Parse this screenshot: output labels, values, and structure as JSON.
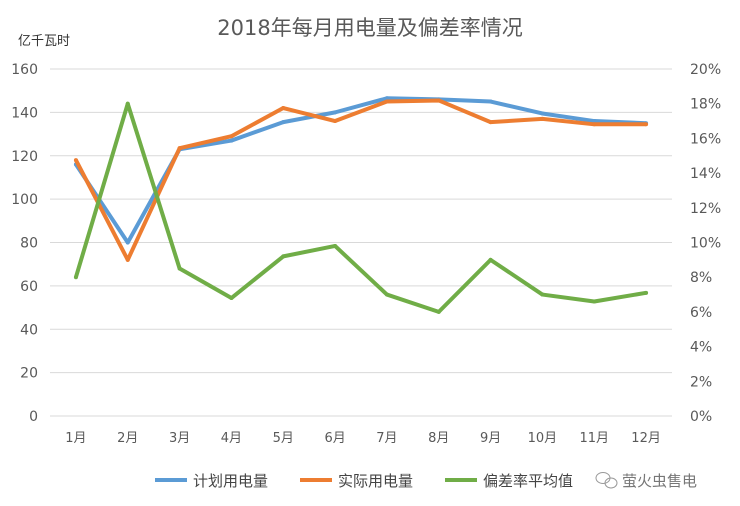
{
  "chart_data": {
    "type": "line",
    "title": "2018年每月用电量及偏差率情况",
    "ylabel": "亿千瓦时",
    "ylim": [
      0,
      160
    ],
    "yticks": [
      "0",
      "20",
      "40",
      "60",
      "80",
      "100",
      "120",
      "140",
      "160"
    ],
    "y2lim": [
      0,
      20
    ],
    "y2ticks": [
      "0%",
      "2%",
      "4%",
      "6%",
      "8%",
      "10%",
      "12%",
      "14%",
      "16%",
      "18%",
      "20%"
    ],
    "grid": true,
    "legend_position": "bottom",
    "categories": [
      "1月",
      "2月",
      "3月",
      "4月",
      "5月",
      "6月",
      "7月",
      "8月",
      "9月",
      "10月",
      "11月",
      "12月"
    ],
    "series": [
      {
        "name": "计划用电量",
        "axis": "left",
        "color": "#5b9bd5",
        "values": [
          116,
          80,
          123,
          127,
          135.5,
          140,
          146.5,
          146,
          145,
          139.5,
          136,
          135
        ]
      },
      {
        "name": "实际用电量",
        "axis": "left",
        "color": "#ed7d31",
        "values": [
          118,
          72,
          123.5,
          129,
          142,
          136,
          145,
          145.5,
          135.5,
          137,
          134.5,
          134.5
        ]
      },
      {
        "name": "偏差率平均值",
        "axis": "right",
        "unit": "%",
        "color": "#70ad47",
        "values": [
          8.0,
          18.0,
          8.5,
          6.8,
          9.2,
          9.8,
          7.0,
          6.0,
          9.0,
          7.0,
          6.6,
          7.1
        ]
      }
    ]
  },
  "watermark": "萤火虫售电"
}
